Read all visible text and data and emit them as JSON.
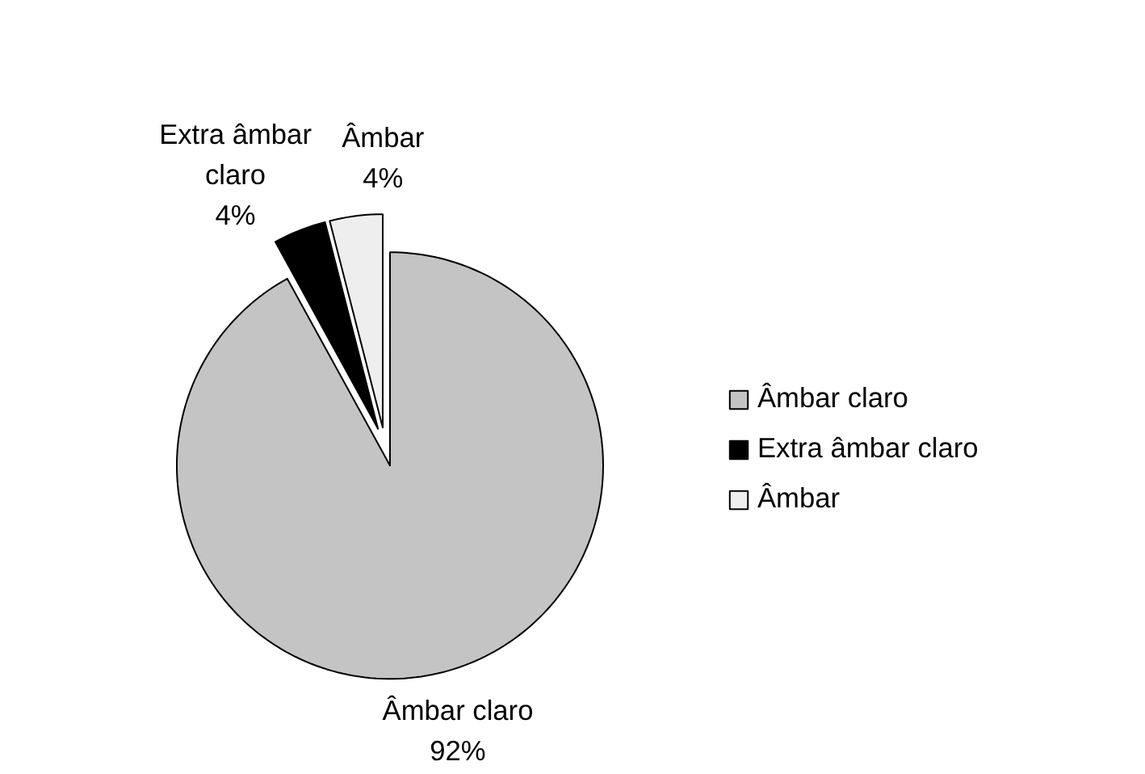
{
  "chart_data": {
    "type": "pie",
    "categories": [
      "Âmbar claro",
      "Extra âmbar claro",
      "Âmbar"
    ],
    "values": [
      92,
      4,
      4
    ],
    "colors": [
      "#c4c4c4",
      "#000000",
      "#eeeeee"
    ],
    "value_labels": [
      "92%",
      "4%",
      "4%"
    ],
    "data_labels": true,
    "legend": "right"
  }
}
